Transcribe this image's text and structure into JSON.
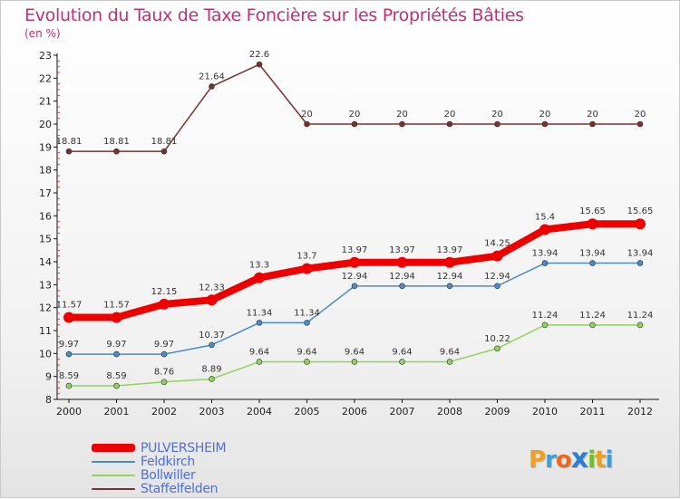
{
  "header": {
    "title": "Evolution du Taux de Taxe Foncière sur les Propriétés Bâties",
    "unit": "(en %)"
  },
  "logo": {
    "letters": [
      "P",
      "r",
      "o",
      "x",
      "i",
      "t",
      "i"
    ],
    "colors": [
      "#f0a020",
      "#3aa0d8",
      "#e86a20",
      "#2a7fd0",
      "#6cbf2a",
      "#e8a020",
      "#3aa0d8"
    ]
  },
  "chart_data": {
    "type": "line",
    "title": "Evolution du Taux de Taxe Foncière sur les Propriétés Bâties",
    "ylabel": "(en %)",
    "xlabel": "",
    "x": [
      "2000",
      "2001",
      "2002",
      "2003",
      "2004",
      "2005",
      "2006",
      "2007",
      "2008",
      "2009",
      "2010",
      "2011",
      "2012"
    ],
    "ylim": [
      8,
      23
    ],
    "yticks": [
      "8",
      "9",
      "10",
      "11",
      "12",
      "13",
      "14",
      "15",
      "16",
      "17",
      "18",
      "19",
      "20",
      "21",
      "22",
      "23"
    ],
    "grid": false,
    "legend_position": "bottom-left",
    "series": [
      {
        "name": "PULVERSHEIM",
        "color": "#ee0000",
        "width": 8,
        "values": [
          11.57,
          11.57,
          12.15,
          12.33,
          13.3,
          13.7,
          13.97,
          13.97,
          13.97,
          14.25,
          15.4,
          15.65,
          15.65
        ],
        "labels": [
          "11.57",
          "11.57",
          "12.15",
          "12.33",
          "13.3",
          "13.7",
          "13.97",
          "13.97",
          "13.97",
          "14.25",
          "15.4",
          "15.65",
          "15.65"
        ]
      },
      {
        "name": "Feldkirch",
        "color": "#4a8cc8",
        "width": 1.5,
        "values": [
          9.97,
          9.97,
          9.97,
          10.37,
          11.34,
          11.34,
          12.94,
          12.94,
          12.94,
          12.94,
          13.94,
          13.94,
          13.94
        ],
        "labels": [
          "9.97",
          "9.97",
          "9.97",
          "10.37",
          "11.34",
          "11.34",
          "12.94",
          "12.94",
          "12.94",
          "12.94",
          "13.94",
          "13.94",
          "13.94"
        ]
      },
      {
        "name": "Bollwiller",
        "color": "#8fd45a",
        "width": 1.5,
        "values": [
          8.59,
          8.59,
          8.76,
          8.89,
          9.64,
          9.64,
          9.64,
          9.64,
          9.64,
          10.22,
          11.24,
          11.24,
          11.24
        ],
        "labels": [
          "8.59",
          "8.59",
          "8.76",
          "8.89",
          "9.64",
          "9.64",
          "9.64",
          "9.64",
          "9.64",
          "10.22",
          "11.24",
          "11.24",
          "11.24"
        ]
      },
      {
        "name": "Staffelfelden",
        "color": "#7a3030",
        "width": 1.5,
        "values": [
          18.81,
          18.81,
          18.81,
          21.64,
          22.6,
          20,
          20,
          20,
          20,
          20,
          20,
          20,
          20
        ],
        "labels": [
          "18.81",
          "18.81",
          "18.81",
          "21.64",
          "22.6",
          "20",
          "20",
          "20",
          "20",
          "20",
          "20",
          "20",
          "20"
        ]
      }
    ]
  }
}
